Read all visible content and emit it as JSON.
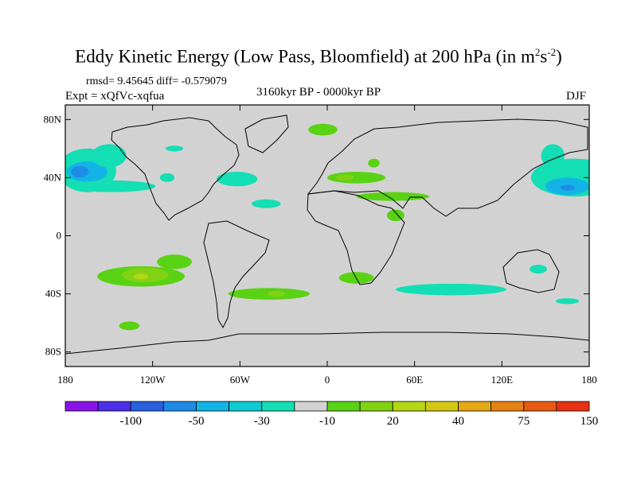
{
  "title": {
    "main": "Eddy Kinetic Energy (Low Pass, Bloomfield) at 200 hPa (in m",
    "sup1": "2",
    "mid": "s",
    "sup2": "-2",
    "end": ")"
  },
  "stats": "rmsd= 9.45645 diff= -0.579079",
  "expt": "Expt = xQfVc-xqfua",
  "period": "3160kyr BP - 0000kyr BP",
  "season": "DJF",
  "axes": {
    "y_ticks": [
      {
        "lat": 80,
        "label": "80N"
      },
      {
        "lat": 40,
        "label": "40N"
      },
      {
        "lat": 0,
        "label": "0"
      },
      {
        "lat": -40,
        "label": "40S"
      },
      {
        "lat": -80,
        "label": "80S"
      }
    ],
    "x_ticks": [
      {
        "lon": -180,
        "label": "180"
      },
      {
        "lon": -120,
        "label": "120W"
      },
      {
        "lon": -60,
        "label": "60W"
      },
      {
        "lon": 0,
        "label": "0"
      },
      {
        "lon": 60,
        "label": "60E"
      },
      {
        "lon": 120,
        "label": "120E"
      },
      {
        "lon": 180,
        "label": "180"
      }
    ],
    "lon_range": [
      -180,
      180
    ],
    "lat_range": [
      -90,
      90
    ]
  },
  "colorbar": {
    "colors": [
      "#8a14e6",
      "#4b2ee6",
      "#2860e0",
      "#1e8ce6",
      "#12b4e6",
      "#0ecad2",
      "#14deb4",
      "#d2d2d2",
      "#5ad214",
      "#82d214",
      "#b4d614",
      "#d2c814",
      "#e6a814",
      "#e68214",
      "#e65a14",
      "#e63214"
    ],
    "labels": [
      {
        "index": 2,
        "text": "-100"
      },
      {
        "index": 3,
        "text": "-50"
      },
      {
        "index": 4,
        "text": "-30"
      },
      {
        "index": 5,
        "text": "-10"
      },
      {
        "index": 6,
        "text": "20"
      },
      {
        "index": 7,
        "text": "40"
      },
      {
        "index": 8,
        "text": "75"
      },
      {
        "index": 9,
        "text": "150"
      }
    ]
  },
  "chart_data": {
    "type": "heatmap",
    "title": "Eddy Kinetic Energy (Low Pass, Bloomfield) at 200 hPa (in m2s-2)",
    "background_color": "#d2d2d2",
    "regions": [
      {
        "lon": -165,
        "lat": 45,
        "rlon": 20,
        "rlat": 15,
        "color": "#14deb4"
      },
      {
        "lon": -165,
        "lat": 44,
        "rlon": 14,
        "rlat": 7,
        "color": "#12b4e6"
      },
      {
        "lon": -170,
        "lat": 44,
        "rlon": 6,
        "rlat": 4,
        "color": "#1e8ce6"
      },
      {
        "lon": -150,
        "lat": 55,
        "rlon": 12,
        "rlat": 8,
        "color": "#14deb4"
      },
      {
        "lon": -148,
        "lat": 34,
        "rlon": 30,
        "rlat": 4,
        "color": "#14deb4"
      },
      {
        "lon": -105,
        "lat": 60,
        "rlon": 6,
        "rlat": 2,
        "color": "#14deb4"
      },
      {
        "lon": -110,
        "lat": 40,
        "rlon": 5,
        "rlat": 3,
        "color": "#14deb4"
      },
      {
        "lon": -62,
        "lat": 39,
        "rlon": 14,
        "rlat": 5,
        "color": "#14deb4"
      },
      {
        "lon": -42,
        "lat": 22,
        "rlon": 10,
        "rlat": 3,
        "color": "#14deb4"
      },
      {
        "lon": -3,
        "lat": 73,
        "rlon": 10,
        "rlat": 4,
        "color": "#5ad214"
      },
      {
        "lon": 20,
        "lat": 40,
        "rlon": 20,
        "rlat": 4,
        "color": "#5ad214"
      },
      {
        "lon": 12,
        "lat": 40,
        "rlon": 6,
        "rlat": 2,
        "color": "#82d214"
      },
      {
        "lon": 32,
        "lat": 50,
        "rlon": 4,
        "rlat": 3,
        "color": "#5ad214"
      },
      {
        "lon": 45,
        "lat": 27,
        "rlon": 25,
        "rlat": 3,
        "color": "#5ad214"
      },
      {
        "lon": 47,
        "lat": 14,
        "rlon": 6,
        "rlat": 4,
        "color": "#5ad214"
      },
      {
        "lon": 170,
        "lat": 40,
        "rlon": 30,
        "rlat": 13,
        "color": "#14deb4"
      },
      {
        "lon": 165,
        "lat": 34,
        "rlon": 15,
        "rlat": 6,
        "color": "#12b4e6"
      },
      {
        "lon": 165,
        "lat": 33,
        "rlon": 5,
        "rlat": 2,
        "color": "#1e8ce6"
      },
      {
        "lon": 155,
        "lat": 55,
        "rlon": 8,
        "rlat": 8,
        "color": "#14deb4"
      },
      {
        "lon": -128,
        "lat": -28,
        "rlon": 30,
        "rlat": 7,
        "color": "#5ad214"
      },
      {
        "lon": -105,
        "lat": -18,
        "rlon": 12,
        "rlat": 5,
        "color": "#5ad214"
      },
      {
        "lon": -125,
        "lat": -27,
        "rlon": 16,
        "rlat": 5,
        "color": "#82d214"
      },
      {
        "lon": -128,
        "lat": -28,
        "rlon": 5,
        "rlat": 2,
        "color": "#b4d614"
      },
      {
        "lon": -40,
        "lat": -40,
        "rlon": 28,
        "rlat": 4,
        "color": "#5ad214"
      },
      {
        "lon": -35,
        "lat": -40,
        "rlon": 6,
        "rlat": 2,
        "color": "#82d214"
      },
      {
        "lon": 20,
        "lat": -29,
        "rlon": 12,
        "rlat": 4,
        "color": "#5ad214"
      },
      {
        "lon": 85,
        "lat": -37,
        "rlon": 38,
        "rlat": 4,
        "color": "#14deb4"
      },
      {
        "lon": 145,
        "lat": -23,
        "rlon": 6,
        "rlat": 3,
        "color": "#14deb4"
      },
      {
        "lon": 165,
        "lat": -45,
        "rlon": 8,
        "rlat": 2,
        "color": "#14deb4"
      },
      {
        "lon": -136,
        "lat": -62,
        "rlon": 7,
        "rlat": 3,
        "color": "#5ad214"
      }
    ]
  }
}
